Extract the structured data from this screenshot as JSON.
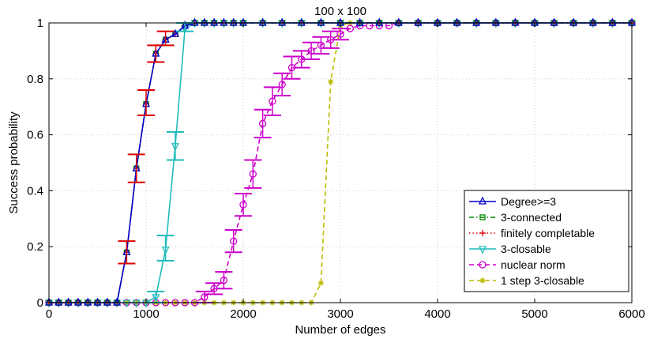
{
  "chart_data": {
    "type": "line",
    "title": "100 x 100",
    "xlabel": "Number of edges",
    "ylabel": "Success probability",
    "xlim": [
      0,
      6000
    ],
    "ylim": [
      0,
      1
    ],
    "xticks": [
      "0",
      "1000",
      "2000",
      "3000",
      "4000",
      "5000",
      "6000"
    ],
    "yticks": [
      "0",
      "0.2",
      "0.4",
      "0.6",
      "0.8",
      "1"
    ],
    "grid": true,
    "legend_position": "bottom-right",
    "series": [
      {
        "name": "Degree>=3",
        "color": "#0000cc",
        "marker": "triangle-up",
        "dash": "solid",
        "x": [
          0,
          100,
          200,
          300,
          400,
          500,
          600,
          700,
          800,
          900,
          1000,
          1100,
          1200,
          1300,
          1400,
          1500,
          1600,
          1700,
          1800,
          1900,
          2000,
          2200,
          2400,
          2600,
          2800,
          3000,
          3200,
          3400,
          3600,
          3800,
          4000,
          4200,
          4400,
          4600,
          4800,
          5000,
          5200,
          5400,
          5600,
          5800,
          6000
        ],
        "y": [
          0,
          0,
          0,
          0,
          0,
          0,
          0,
          0,
          0.18,
          0.48,
          0.71,
          0.89,
          0.94,
          0.96,
          0.99,
          1,
          1,
          1,
          1,
          1,
          1,
          1,
          1,
          1,
          1,
          1,
          1,
          1,
          1,
          1,
          1,
          1,
          1,
          1,
          1,
          1,
          1,
          1,
          1,
          1,
          1
        ]
      },
      {
        "name": "3-connected",
        "color": "#008800",
        "marker": "square",
        "dash": "dashdot",
        "x": [
          0,
          100,
          200,
          300,
          400,
          500,
          600,
          700,
          800,
          900,
          1000,
          1100,
          1200,
          1300,
          1400,
          1500,
          1600,
          1700,
          1800,
          1900,
          2000,
          2200,
          2400,
          2600,
          2800,
          3000,
          3200,
          3400,
          3600,
          3800,
          4000,
          4200,
          4400,
          4600,
          4800,
          5000,
          5200,
          5400,
          5600,
          5800,
          6000
        ],
        "y": [
          0,
          0,
          0,
          0,
          0,
          0,
          0,
          0,
          0.18,
          0.48,
          0.71,
          0.89,
          0.94,
          0.96,
          0.99,
          1,
          1,
          1,
          1,
          1,
          1,
          1,
          1,
          1,
          1,
          1,
          1,
          1,
          1,
          1,
          1,
          1,
          1,
          1,
          1,
          1,
          1,
          1,
          1,
          1,
          1
        ]
      },
      {
        "name": "finitely completable",
        "color": "#dd0000",
        "marker": "plus",
        "dash": "dotted",
        "x": [
          0,
          100,
          200,
          300,
          400,
          500,
          600,
          700,
          800,
          900,
          1000,
          1100,
          1200,
          1300,
          1400,
          1500,
          1600,
          1700,
          1800,
          1900,
          2000,
          2200,
          2400,
          2600,
          2800,
          3000,
          3200,
          3400,
          3600,
          3800,
          4000,
          4200,
          4400,
          4600,
          4800,
          5000,
          5200,
          5400,
          5600,
          5800,
          6000
        ],
        "y": [
          0,
          0,
          0,
          0,
          0,
          0,
          0,
          0,
          0.18,
          0.48,
          0.71,
          0.89,
          0.94,
          0.96,
          0.99,
          1,
          1,
          1,
          1,
          1,
          1,
          1,
          1,
          1,
          1,
          1,
          1,
          1,
          1,
          1,
          1,
          1,
          1,
          1,
          1,
          1,
          1,
          1,
          1,
          1,
          1
        ]
      },
      {
        "name": "3-closable",
        "color": "#22bbbb",
        "marker": "triangle-down",
        "dash": "solid",
        "x": [
          0,
          100,
          200,
          300,
          400,
          500,
          600,
          700,
          800,
          900,
          1000,
          1100,
          1200,
          1300,
          1400,
          1500,
          1600,
          1700,
          1800,
          1900,
          2000,
          2200,
          2400,
          2600,
          2800,
          3000,
          3200,
          3400,
          3600,
          3800,
          4000,
          4200,
          4400,
          4600,
          4800,
          5000,
          5200,
          5400,
          5600,
          5800,
          6000
        ],
        "y": [
          0,
          0,
          0,
          0,
          0,
          0,
          0,
          0,
          0,
          0,
          0,
          0.02,
          0.19,
          0.56,
          0.98,
          1,
          1,
          1,
          1,
          1,
          1,
          1,
          1,
          1,
          1,
          1,
          1,
          1,
          1,
          1,
          1,
          1,
          1,
          1,
          1,
          1,
          1,
          1,
          1,
          1,
          1
        ]
      },
      {
        "name": "nuclear norm",
        "color": "#cc00cc",
        "marker": "circle",
        "dash": "dashed",
        "x": [
          0,
          100,
          200,
          300,
          400,
          500,
          600,
          700,
          800,
          900,
          1000,
          1100,
          1200,
          1300,
          1400,
          1500,
          1600,
          1700,
          1800,
          1900,
          2000,
          2100,
          2200,
          2300,
          2400,
          2500,
          2600,
          2700,
          2800,
          2900,
          3000,
          3100,
          3200,
          3300,
          3400,
          3500,
          3600,
          3800,
          4000,
          4200,
          4400,
          4600,
          4800,
          5000,
          5200,
          5400,
          5600,
          5800,
          6000
        ],
        "y": [
          0,
          0,
          0,
          0,
          0,
          0,
          0,
          0,
          0,
          0,
          0,
          0,
          0,
          0,
          0,
          0,
          0.02,
          0.05,
          0.08,
          0.22,
          0.35,
          0.46,
          0.64,
          0.72,
          0.78,
          0.84,
          0.87,
          0.9,
          0.92,
          0.94,
          0.96,
          0.98,
          0.99,
          0.99,
          0.99,
          0.99,
          1,
          1,
          1,
          1,
          1,
          1,
          1,
          1,
          1,
          1,
          1,
          1,
          1
        ]
      },
      {
        "name": "1 step 3-closable",
        "color": "#bbbb00",
        "marker": "star",
        "dash": "dashed",
        "x": [
          0,
          100,
          200,
          300,
          400,
          500,
          600,
          700,
          800,
          900,
          1000,
          1100,
          1200,
          1300,
          1400,
          1500,
          1600,
          1700,
          1800,
          1900,
          2000,
          2100,
          2200,
          2300,
          2400,
          2500,
          2600,
          2700,
          2800,
          2900,
          3000,
          3100,
          3200,
          3400,
          3600,
          3800,
          4000,
          4200,
          4400,
          4600,
          4800,
          5000,
          5200,
          5400,
          5600,
          5800,
          6000
        ],
        "y": [
          0,
          0,
          0,
          0,
          0,
          0,
          0,
          0,
          0,
          0,
          0,
          0,
          0,
          0,
          0,
          0,
          0,
          0,
          0,
          0,
          0,
          0,
          0,
          0,
          0,
          0,
          0,
          0,
          0.07,
          0.79,
          0.99,
          1,
          1,
          1,
          1,
          1,
          1,
          1,
          1,
          1,
          1,
          1,
          1,
          1,
          1,
          1,
          1
        ]
      }
    ],
    "error_bars": [
      {
        "series": "Degree>=3",
        "color": "#dd0000",
        "points": [
          [
            800,
            0.14,
            0.22
          ],
          [
            900,
            0.43,
            0.53
          ],
          [
            1000,
            0.67,
            0.76
          ],
          [
            1100,
            0.86,
            0.92
          ],
          [
            1200,
            0.92,
            0.97
          ]
        ]
      },
      {
        "series": "3-closable",
        "color": "#22bbbb",
        "points": [
          [
            1100,
            0.0,
            0.04
          ],
          [
            1200,
            0.15,
            0.24
          ],
          [
            1300,
            0.51,
            0.61
          ],
          [
            1400,
            0.97,
            1.0
          ]
        ]
      },
      {
        "series": "nuclear norm",
        "color": "#cc00cc",
        "points": [
          [
            1600,
            0.0,
            0.04
          ],
          [
            1700,
            0.03,
            0.07
          ],
          [
            1800,
            0.05,
            0.11
          ],
          [
            1900,
            0.18,
            0.26
          ],
          [
            2000,
            0.31,
            0.39
          ],
          [
            2100,
            0.41,
            0.51
          ],
          [
            2200,
            0.59,
            0.69
          ],
          [
            2300,
            0.67,
            0.77
          ],
          [
            2400,
            0.74,
            0.82
          ],
          [
            2500,
            0.8,
            0.88
          ],
          [
            2600,
            0.84,
            0.9
          ],
          [
            2700,
            0.87,
            0.93
          ],
          [
            2800,
            0.89,
            0.95
          ],
          [
            2900,
            0.91,
            0.97
          ],
          [
            3000,
            0.94,
            0.98
          ]
        ]
      }
    ]
  }
}
